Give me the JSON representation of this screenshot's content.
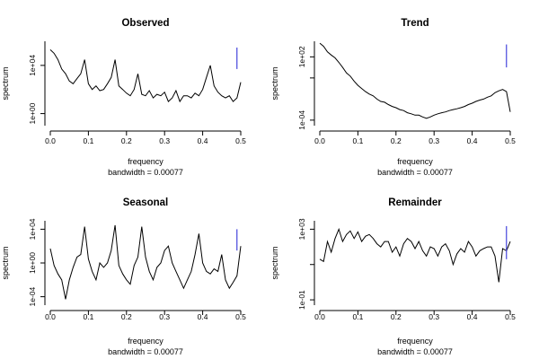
{
  "chart_data": [
    {
      "type": "line",
      "title": "Observed",
      "xlabel": "frequency",
      "sublabel": "bandwidth = 0.00077",
      "ylabel": "spectrum",
      "y_scale": "log10",
      "xlim": [
        0,
        0.5
      ],
      "ylim": [
        0.1,
        1000000
      ],
      "x_ticks": [
        "0.0",
        "0.1",
        "0.2",
        "0.3",
        "0.4",
        "0.5"
      ],
      "y_ticks": [
        "1e+00",
        "1e+04"
      ],
      "ci_bar": {
        "x": 0.49,
        "y_range": [
          5000,
          300000
        ],
        "color": "#4444dd"
      },
      "series_color": "#000000",
      "x": [
        0.0,
        0.01,
        0.02,
        0.03,
        0.04,
        0.05,
        0.06,
        0.07,
        0.08,
        0.09,
        0.1,
        0.11,
        0.12,
        0.13,
        0.14,
        0.15,
        0.16,
        0.17,
        0.18,
        0.19,
        0.2,
        0.21,
        0.22,
        0.23,
        0.24,
        0.25,
        0.26,
        0.27,
        0.28,
        0.29,
        0.3,
        0.31,
        0.32,
        0.33,
        0.34,
        0.35,
        0.36,
        0.37,
        0.38,
        0.39,
        0.4,
        0.41,
        0.42,
        0.43,
        0.44,
        0.45,
        0.46,
        0.47,
        0.48,
        0.49,
        0.5
      ],
      "y": [
        200000,
        100000,
        30000,
        5000,
        2000,
        500,
        300,
        800,
        2000,
        30000,
        300,
        100,
        200,
        80,
        100,
        300,
        1000,
        30000,
        200,
        100,
        50,
        30,
        100,
        2000,
        40,
        30,
        80,
        20,
        40,
        30,
        60,
        10,
        20,
        80,
        10,
        30,
        30,
        20,
        50,
        30,
        100,
        1000,
        10000,
        200,
        60,
        30,
        20,
        30,
        10,
        20,
        400
      ]
    },
    {
      "type": "line",
      "title": "Trend",
      "xlabel": "frequency",
      "sublabel": "bandwidth = 0.00077",
      "ylabel": "spectrum",
      "y_scale": "log10",
      "xlim": [
        0,
        0.5
      ],
      "ylim": [
        3e-05,
        3000
      ],
      "x_ticks": [
        "0.0",
        "0.1",
        "0.2",
        "0.3",
        "0.4",
        "0.5"
      ],
      "y_ticks": [
        "1e-04",
        "1e+02"
      ],
      "y_tick_values": [
        0.0001,
        100
      ],
      "y_minor_ticks": [
        1
      ],
      "ci_bar": {
        "x": 0.49,
        "y_range": [
          10,
          1500
        ],
        "color": "#4444dd"
      },
      "series_color": "#000000",
      "x": [
        0.0,
        0.01,
        0.02,
        0.03,
        0.04,
        0.05,
        0.06,
        0.07,
        0.08,
        0.09,
        0.1,
        0.11,
        0.12,
        0.13,
        0.14,
        0.15,
        0.16,
        0.17,
        0.18,
        0.19,
        0.2,
        0.21,
        0.22,
        0.23,
        0.24,
        0.25,
        0.26,
        0.27,
        0.28,
        0.29,
        0.3,
        0.31,
        0.32,
        0.33,
        0.34,
        0.35,
        0.36,
        0.37,
        0.38,
        0.39,
        0.4,
        0.41,
        0.42,
        0.43,
        0.44,
        0.45,
        0.46,
        0.47,
        0.48,
        0.49,
        0.5
      ],
      "y": [
        2000,
        1000,
        300,
        150,
        80,
        30,
        10,
        3,
        1.5,
        0.5,
        0.2,
        0.1,
        0.05,
        0.03,
        0.02,
        0.01,
        0.006,
        0.005,
        0.003,
        0.002,
        0.0015,
        0.001,
        0.0008,
        0.0005,
        0.0004,
        0.0003,
        0.0003,
        0.0002,
        0.00015,
        0.0002,
        0.0003,
        0.0004,
        0.0005,
        0.0006,
        0.0008,
        0.001,
        0.0012,
        0.0015,
        0.002,
        0.003,
        0.004,
        0.006,
        0.008,
        0.01,
        0.015,
        0.02,
        0.04,
        0.06,
        0.08,
        0.05,
        0.0006
      ]
    },
    {
      "type": "line",
      "title": "Seasonal",
      "xlabel": "frequency",
      "sublabel": "bandwidth = 0.00077",
      "ylabel": "spectrum",
      "y_scale": "log10",
      "xlim": [
        0,
        0.5
      ],
      "ylim": [
        1e-05,
        100000
      ],
      "x_ticks": [
        "0.0",
        "0.1",
        "0.2",
        "0.3",
        "0.4",
        "0.5"
      ],
      "y_ticks": [
        "1e-04",
        "1e+00",
        "1e+04"
      ],
      "ci_bar": {
        "x": 0.49,
        "y_range": [
          30,
          10000
        ],
        "color": "#4444dd"
      },
      "series_color": "#000000",
      "x": [
        0.0,
        0.01,
        0.02,
        0.03,
        0.04,
        0.05,
        0.06,
        0.07,
        0.08,
        0.09,
        0.1,
        0.11,
        0.12,
        0.13,
        0.14,
        0.15,
        0.16,
        0.17,
        0.18,
        0.19,
        0.2,
        0.21,
        0.22,
        0.23,
        0.24,
        0.25,
        0.26,
        0.27,
        0.28,
        0.29,
        0.3,
        0.31,
        0.32,
        0.33,
        0.34,
        0.35,
        0.36,
        0.37,
        0.38,
        0.39,
        0.4,
        0.41,
        0.42,
        0.43,
        0.44,
        0.45,
        0.46,
        0.47,
        0.48,
        0.49,
        0.5
      ],
      "y": [
        50,
        0.5,
        0.05,
        0.01,
        5e-05,
        0.01,
        0.3,
        5,
        10,
        20000,
        3,
        0.1,
        0.01,
        1,
        0.3,
        1,
        30,
        30000,
        0.5,
        0.05,
        0.01,
        0.003,
        0.5,
        5,
        20000,
        5,
        0.1,
        0.01,
        0.3,
        1,
        30,
        100,
        1,
        0.1,
        0.01,
        0.001,
        0.01,
        0.1,
        10,
        3000,
        1,
        0.1,
        0.05,
        0.2,
        0.1,
        10,
        0.01,
        0.001,
        0.005,
        0.03,
        100
      ]
    },
    {
      "type": "line",
      "title": "Remainder",
      "xlabel": "frequency",
      "sublabel": "bandwidth = 0.00077",
      "ylabel": "spectrum",
      "y_scale": "log10",
      "xlim": [
        0,
        0.5
      ],
      "ylim": [
        0.05,
        3000
      ],
      "x_ticks": [
        "0.0",
        "0.1",
        "0.2",
        "0.3",
        "0.4",
        "0.5"
      ],
      "y_ticks": [
        "1e-01",
        "1e+03"
      ],
      "y_tick_values": [
        0.1,
        1000
      ],
      "y_minor_ticks": [
        10
      ],
      "ci_bar": {
        "x": 0.49,
        "y_range": [
          20,
          1500
        ],
        "color": "#4444dd"
      },
      "series_color": "#000000",
      "x": [
        0.0,
        0.01,
        0.02,
        0.03,
        0.04,
        0.05,
        0.06,
        0.07,
        0.08,
        0.09,
        0.1,
        0.11,
        0.12,
        0.13,
        0.14,
        0.15,
        0.16,
        0.17,
        0.18,
        0.19,
        0.2,
        0.21,
        0.22,
        0.23,
        0.24,
        0.25,
        0.26,
        0.27,
        0.28,
        0.29,
        0.3,
        0.31,
        0.32,
        0.33,
        0.34,
        0.35,
        0.36,
        0.37,
        0.38,
        0.39,
        0.4,
        0.41,
        0.42,
        0.43,
        0.44,
        0.45,
        0.46,
        0.47,
        0.48,
        0.49,
        0.5
      ],
      "y": [
        20,
        15,
        200,
        50,
        300,
        1000,
        200,
        500,
        800,
        300,
        700,
        200,
        400,
        500,
        300,
        150,
        100,
        200,
        200,
        50,
        100,
        30,
        150,
        300,
        200,
        80,
        200,
        60,
        30,
        100,
        80,
        30,
        100,
        150,
        60,
        10,
        40,
        80,
        50,
        200,
        100,
        30,
        60,
        80,
        100,
        100,
        30,
        1,
        80,
        60,
        200
      ]
    }
  ]
}
